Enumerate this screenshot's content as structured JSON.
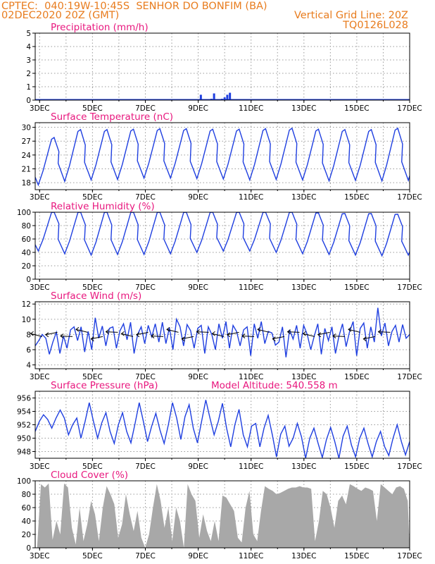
{
  "header": {
    "station_line": "CPTEC:  040:19W-10:45S  SENHOR DO BONFIM (BA)",
    "date_line": "02DEC2020 20Z (GMT)",
    "grid_note": "Vertical Grid Line: 20Z",
    "code": "TQ0126L028"
  },
  "colors": {
    "header": "#e87c1e",
    "title": "#e8177e",
    "line": "#1f3fe0",
    "cloud": "#a8a8a8",
    "grid": "#9a9a9a"
  },
  "chart_data": [
    {
      "type": "bar",
      "title": "Precipitation (mm/h)",
      "x_tick_labels": [
        "3DEC",
        "5DEC",
        "7DEC",
        "9DEC",
        "11DEC",
        "13DEC",
        "15DEC",
        "17DEC"
      ],
      "y_ticks": [
        "0",
        "1",
        "2",
        "3",
        "4",
        "5"
      ],
      "ylim": [
        0,
        5
      ],
      "x": [
        9.1,
        9.5,
        9.6,
        9.9,
        10.0,
        10.1,
        10.2
      ],
      "values": [
        0.4,
        0.1,
        0.5,
        0.1,
        0.2,
        0.4,
        0.55
      ],
      "grid": true
    },
    {
      "type": "line",
      "title": "Surface Temperature (nC)",
      "x_tick_labels": [
        "3DEC",
        "5DEC",
        "7DEC",
        "9DEC",
        "11DEC",
        "13DEC",
        "15DEC",
        "17DEC"
      ],
      "y_ticks": [
        "18",
        "21",
        "24",
        "27",
        "30"
      ],
      "ylim": [
        16.5,
        31
      ],
      "daily_max": [
        27.8,
        29.5,
        29.5,
        29.6,
        29.7,
        29.7,
        29.6,
        29.6,
        29.7,
        29.8,
        29.6,
        29.5,
        29.5,
        29.8,
        30.0
      ],
      "daily_min": [
        17.5,
        18.3,
        18.6,
        18.7,
        19.0,
        19.0,
        18.9,
        18.8,
        18.6,
        18.7,
        18.6,
        18.4,
        18.5,
        18.4,
        18.5
      ],
      "grid": true
    },
    {
      "type": "line",
      "title": "Relative Humidity (%)",
      "x_tick_labels": [
        "3DEC",
        "5DEC",
        "7DEC",
        "9DEC",
        "11DEC",
        "13DEC",
        "15DEC",
        "17DEC"
      ],
      "y_ticks": [
        "0",
        "20",
        "40",
        "60",
        "80",
        "100"
      ],
      "ylim": [
        0,
        100
      ],
      "daily_max": [
        100,
        100,
        100,
        100,
        100,
        100,
        100,
        100,
        100,
        100,
        99,
        98,
        98,
        97,
        95
      ],
      "daily_min": [
        42,
        38,
        36,
        37,
        37,
        38,
        40,
        42,
        42,
        40,
        38,
        37,
        36,
        35,
        36
      ],
      "grid": true
    },
    {
      "type": "line",
      "title": "Surface Wind (m/s)",
      "x_tick_labels": [
        "3DEC",
        "5DEC",
        "7DEC",
        "9DEC",
        "11DEC",
        "13DEC",
        "15DEC",
        "17DEC"
      ],
      "y_ticks": [
        "4",
        "6",
        "8",
        "10",
        "12"
      ],
      "ylim": [
        3.5,
        12.3
      ],
      "values": [
        6.5,
        7.2,
        8.0,
        7.5,
        5.4,
        7.0,
        8.3,
        5.5,
        7.8,
        6.2,
        8.6,
        9.0,
        7.2,
        9.0,
        5.7,
        8.4,
        6.0,
        10.2,
        7.5,
        9.1,
        6.5,
        8.8,
        9.0,
        6.2,
        8.5,
        9.4,
        7.3,
        9.6,
        5.5,
        8.0,
        9.0,
        6.8,
        9.2,
        7.7,
        9.4,
        7.0,
        9.6,
        6.8,
        8.9,
        6.0,
        10.0,
        9.0,
        6.5,
        9.3,
        8.5,
        6.2,
        8.8,
        9.2,
        5.5,
        9.0,
        8.0,
        6.0,
        9.4,
        7.5,
        9.7,
        6.2,
        9.2,
        8.4,
        6.5,
        8.6,
        9.0,
        5.2,
        9.4,
        7.5,
        9.7,
        6.8,
        8.4,
        8.2,
        6.6,
        7.0,
        9.0,
        5.0,
        8.6,
        7.4,
        9.2,
        6.2,
        9.2,
        8.0,
        6.0,
        7.8,
        9.4,
        5.4,
        8.8,
        7.2,
        9.0,
        5.5,
        7.8,
        9.4,
        6.4,
        8.4,
        9.7,
        5.2,
        8.8,
        9.5,
        6.2,
        9.0,
        7.0,
        11.5,
        7.8,
        9.5,
        6.5,
        8.4,
        9.2,
        7.0,
        9.3,
        7.5,
        8.0
      ],
      "grid": true
    },
    {
      "type": "line",
      "title": "Surface Pressure (hPa)",
      "annotation": "Model Altitude: 540.558  m",
      "x_tick_labels": [
        "3DEC",
        "5DEC",
        "7DEC",
        "9DEC",
        "11DEC",
        "13DEC",
        "15DEC",
        "17DEC"
      ],
      "y_ticks": [
        "948",
        "950",
        "952",
        "954",
        "956"
      ],
      "ylim": [
        947,
        957
      ],
      "values": [
        951.0,
        952.5,
        953.5,
        952.8,
        951.5,
        953.0,
        954.2,
        953.0,
        950.5,
        952.0,
        953.0,
        950.0,
        952.5,
        955.3,
        952.5,
        950.0,
        952.3,
        953.8,
        951.0,
        949.2,
        952.0,
        953.8,
        951.0,
        949.3,
        952.2,
        955.3,
        952.5,
        949.5,
        951.8,
        953.7,
        951.2,
        949.2,
        952.0,
        955.3,
        953.0,
        949.8,
        953.2,
        955.0,
        951.5,
        949.3,
        952.5,
        955.7,
        953.0,
        950.5,
        952.5,
        955.2,
        951.5,
        948.7,
        952.0,
        954.3,
        950.5,
        948.7,
        951.8,
        952.2,
        948.7,
        951.5,
        953.4,
        950.5,
        947.2,
        950.6,
        951.8,
        948.8,
        950.0,
        952.2,
        950.2,
        947.0,
        950.0,
        951.5,
        949.2,
        947.1,
        949.8,
        951.6,
        949.5,
        947.0,
        950.3,
        951.8,
        949.0,
        947.2,
        950.0,
        951.5,
        949.2,
        947.2,
        949.5,
        951.0,
        948.7,
        947.4,
        950.0,
        952.0,
        949.5,
        947.5,
        949.5
      ],
      "grid": true
    },
    {
      "type": "area",
      "title": "Cloud Cover (%)",
      "x_tick_labels": [
        "3DEC",
        "5DEC",
        "7DEC",
        "9DEC",
        "11DEC",
        "13DEC",
        "15DEC",
        "17DEC"
      ],
      "y_ticks": [
        "0",
        "20",
        "40",
        "60",
        "80",
        "100"
      ],
      "ylim": [
        0,
        100
      ],
      "values": [
        0,
        95,
        90,
        96,
        12,
        40,
        20,
        96,
        90,
        30,
        5,
        60,
        10,
        35,
        70,
        50,
        10,
        60,
        92,
        80,
        65,
        15,
        35,
        80,
        50,
        25,
        55,
        15,
        0,
        20,
        60,
        95,
        70,
        30,
        60,
        10,
        60,
        40,
        0,
        95,
        80,
        70,
        15,
        50,
        25,
        10,
        40,
        10,
        78,
        75,
        65,
        55,
        15,
        8,
        60,
        85,
        20,
        10,
        55,
        92,
        88,
        85,
        80,
        82,
        85,
        88,
        90,
        90,
        92,
        90,
        90,
        88,
        10,
        40,
        85,
        80,
        60,
        30,
        70,
        78,
        65,
        95,
        92,
        88,
        85,
        90,
        88,
        85,
        40,
        95,
        90,
        85,
        80,
        90,
        92,
        88,
        70
      ],
      "grid": true
    }
  ]
}
